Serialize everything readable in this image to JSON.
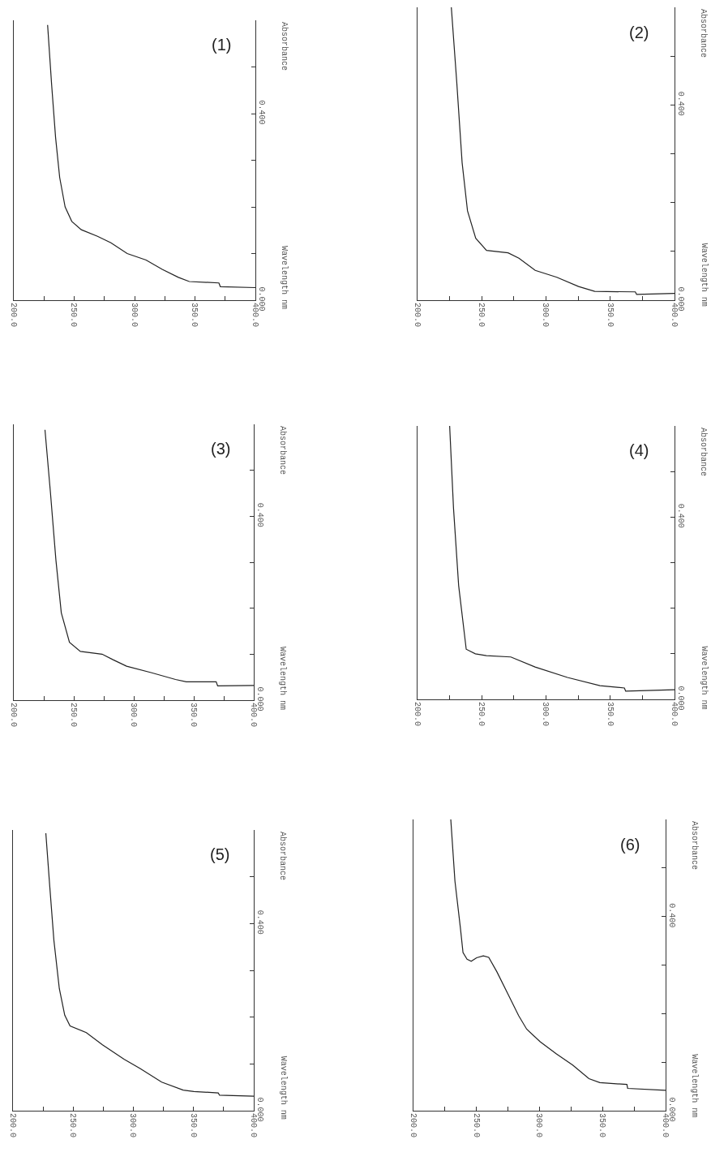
{
  "chart_data": [
    {
      "type": "line",
      "title": "(1)",
      "annotations": [
        "Wavelength nm"
      ],
      "ylabel": "Absorbance",
      "xlim": [
        200,
        400
      ],
      "ylim": [
        0,
        0.6
      ],
      "xticks": [
        {
          "value": 200,
          "label": "200.0"
        },
        {
          "value": 225,
          "label": null
        },
        {
          "value": 250,
          "label": "250.0"
        },
        {
          "value": 275,
          "label": null
        },
        {
          "value": 300,
          "label": "300.0"
        },
        {
          "value": 325,
          "label": null
        },
        {
          "value": 350,
          "label": "350.0"
        },
        {
          "value": 375,
          "label": null
        },
        {
          "value": 400,
          "label": "400.0"
        }
      ],
      "yticks": [
        {
          "value": 0,
          "label": "0.000"
        },
        {
          "value": 0.1,
          "label": null
        },
        {
          "value": 0.2,
          "label": null
        },
        {
          "value": 0.3,
          "label": null
        },
        {
          "value": 0.4,
          "label": "0.400"
        },
        {
          "value": 0.5,
          "label": null
        }
      ],
      "grid": false,
      "marker": "none",
      "line_style": "solid",
      "x": [
        228,
        231.3,
        234.6,
        238,
        242.5,
        248,
        255.9,
        269.3,
        280.4,
        293.9,
        309.5,
        322.9,
        336.3,
        345.3,
        369.8,
        371,
        400
      ],
      "series": [
        {
          "color": "#222222",
          "values": [
            0.59,
            0.463,
            0.349,
            0.263,
            0.2,
            0.169,
            0.151,
            0.137,
            0.123,
            0.1,
            0.086,
            0.066,
            0.049,
            0.04,
            0.037,
            0.029,
            0.027
          ]
        }
      ]
    },
    {
      "type": "line",
      "title": "(2)",
      "annotations": [
        "Wavelength nm"
      ],
      "ylabel": "Absorbance",
      "xlim": [
        200,
        400
      ],
      "ylim": [
        0,
        0.6
      ],
      "xticks": [
        {
          "value": 200,
          "label": "200.0"
        },
        {
          "value": 225,
          "label": null
        },
        {
          "value": 250,
          "label": "250.0"
        },
        {
          "value": 275,
          "label": null
        },
        {
          "value": 300,
          "label": "300.0"
        },
        {
          "value": 325,
          "label": null
        },
        {
          "value": 350,
          "label": "350.0"
        },
        {
          "value": 375,
          "label": null
        },
        {
          "value": 400,
          "label": "400.0"
        }
      ],
      "yticks": [
        {
          "value": 0,
          "label": "0.000"
        },
        {
          "value": 0.1,
          "label": null
        },
        {
          "value": 0.2,
          "label": null
        },
        {
          "value": 0.3,
          "label": null
        },
        {
          "value": 0.4,
          "label": "0.400"
        },
        {
          "value": 0.5,
          "label": null
        }
      ],
      "grid": false,
      "marker": "none",
      "line_style": "solid",
      "x": [
        226.3,
        230.5,
        234.7,
        238.9,
        245.3,
        253.7,
        270.5,
        278.9,
        291.6,
        308.4,
        325.3,
        337.9,
        369.5,
        370.5,
        400
      ],
      "series": [
        {
          "color": "#222222",
          "values": [
            0.6,
            0.448,
            0.282,
            0.183,
            0.127,
            0.102,
            0.097,
            0.086,
            0.061,
            0.047,
            0.028,
            0.018,
            0.017,
            0.012,
            0.014
          ]
        }
      ]
    },
    {
      "type": "line",
      "title": "(3)",
      "annotations": [
        "Wavelength nm"
      ],
      "ylabel": "Absorbance",
      "xlim": [
        200,
        400
      ],
      "ylim": [
        0,
        0.6
      ],
      "xticks": [
        {
          "value": 200,
          "label": "200.0"
        },
        {
          "value": 225,
          "label": null
        },
        {
          "value": 250,
          "label": "250.0"
        },
        {
          "value": 275,
          "label": null
        },
        {
          "value": 300,
          "label": "300.0"
        },
        {
          "value": 325,
          "label": null
        },
        {
          "value": 350,
          "label": "350.0"
        },
        {
          "value": 375,
          "label": null
        },
        {
          "value": 400,
          "label": "400.0"
        }
      ],
      "yticks": [
        {
          "value": 0,
          "label": "0.000"
        },
        {
          "value": 0.1,
          "label": null
        },
        {
          "value": 0.2,
          "label": null
        },
        {
          "value": 0.3,
          "label": null
        },
        {
          "value": 0.4,
          "label": "0.400"
        },
        {
          "value": 0.5,
          "label": null
        }
      ],
      "grid": false,
      "marker": "none",
      "line_style": "solid",
      "x": [
        226,
        230.6,
        235.1,
        239.6,
        246.4,
        255.5,
        273.6,
        282.7,
        294,
        314.4,
        334.8,
        343.8,
        368.7,
        369.9,
        400
      ],
      "series": [
        {
          "color": "#222222",
          "values": [
            0.588,
            0.45,
            0.305,
            0.19,
            0.126,
            0.106,
            0.1,
            0.088,
            0.074,
            0.06,
            0.045,
            0.04,
            0.04,
            0.031,
            0.032
          ]
        }
      ]
    },
    {
      "type": "line",
      "title": "(4)",
      "annotations": [
        "Wavelength nm"
      ],
      "ylabel": "Absorbance",
      "xlim": [
        200,
        400
      ],
      "ylim": [
        0,
        0.6
      ],
      "xticks": [
        {
          "value": 200,
          "label": "200.0"
        },
        {
          "value": 225,
          "label": null
        },
        {
          "value": 250,
          "label": "250.0"
        },
        {
          "value": 275,
          "label": null
        },
        {
          "value": 300,
          "label": "300.0"
        },
        {
          "value": 325,
          "label": null
        },
        {
          "value": 350,
          "label": "350.0"
        },
        {
          "value": 375,
          "label": null
        },
        {
          "value": 400,
          "label": "400.0"
        }
      ],
      "yticks": [
        {
          "value": 0,
          "label": "0.000"
        },
        {
          "value": 0.1,
          "label": null
        },
        {
          "value": 0.2,
          "label": null
        },
        {
          "value": 0.3,
          "label": null
        },
        {
          "value": 0.4,
          "label": "0.400"
        },
        {
          "value": 0.5,
          "label": null
        }
      ],
      "grid": false,
      "marker": "none",
      "line_style": "solid",
      "x": [
        225,
        228,
        232,
        237.9,
        245,
        253.6,
        272.6,
        291.5,
        316.7,
        342,
        361,
        362,
        400
      ],
      "series": [
        {
          "color": "#222222",
          "values": [
            0.6,
            0.42,
            0.25,
            0.11,
            0.1,
            0.096,
            0.093,
            0.071,
            0.048,
            0.03,
            0.025,
            0.018,
            0.021
          ]
        }
      ]
    },
    {
      "type": "line",
      "title": "(5)",
      "annotations": [
        "Wavelength nm"
      ],
      "ylabel": "Absorbance",
      "xlim": [
        200,
        400
      ],
      "ylim": [
        0,
        0.6
      ],
      "xticks": [
        {
          "value": 200,
          "label": "200.0"
        },
        {
          "value": 225,
          "label": null
        },
        {
          "value": 250,
          "label": "250.0"
        },
        {
          "value": 275,
          "label": null
        },
        {
          "value": 300,
          "label": "300.0"
        },
        {
          "value": 325,
          "label": null
        },
        {
          "value": 350,
          "label": "350.0"
        },
        {
          "value": 375,
          "label": null
        },
        {
          "value": 400,
          "label": "400.0"
        }
      ],
      "yticks": [
        {
          "value": 0,
          "label": "0.000"
        },
        {
          "value": 0.1,
          "label": null
        },
        {
          "value": 0.2,
          "label": null
        },
        {
          "value": 0.3,
          "label": null
        },
        {
          "value": 0.4,
          "label": "0.400"
        },
        {
          "value": 0.5,
          "label": null
        }
      ],
      "grid": false,
      "marker": "none",
      "line_style": "solid",
      "x": [
        227.3,
        230.6,
        234,
        238.5,
        243,
        247.4,
        260.9,
        274.3,
        292.2,
        305.6,
        323.5,
        341.4,
        350.3,
        370.5,
        371.6,
        400
      ],
      "series": [
        {
          "color": "#222222",
          "values": [
            0.593,
            0.478,
            0.364,
            0.261,
            0.204,
            0.181,
            0.167,
            0.141,
            0.11,
            0.09,
            0.061,
            0.044,
            0.041,
            0.038,
            0.033,
            0.031
          ]
        }
      ]
    },
    {
      "type": "line",
      "title": "(6)",
      "annotations": [
        "Wavelength nm"
      ],
      "ylabel": "Absorbance",
      "xlim": [
        200,
        400
      ],
      "ylim": [
        0,
        0.6
      ],
      "xticks": [
        {
          "value": 200,
          "label": "200.0"
        },
        {
          "value": 225,
          "label": null
        },
        {
          "value": 250,
          "label": "250.0"
        },
        {
          "value": 275,
          "label": null
        },
        {
          "value": 300,
          "label": "300.0"
        },
        {
          "value": 325,
          "label": null
        },
        {
          "value": 350,
          "label": "350.0"
        },
        {
          "value": 375,
          "label": null
        },
        {
          "value": 400,
          "label": "400.0"
        }
      ],
      "yticks": [
        {
          "value": 0,
          "label": "0.000"
        },
        {
          "value": 0.1,
          "label": null
        },
        {
          "value": 0.2,
          "label": null
        },
        {
          "value": 0.3,
          "label": null
        },
        {
          "value": 0.4,
          "label": "0.400"
        },
        {
          "value": 0.5,
          "label": null
        }
      ],
      "grid": false,
      "marker": "none",
      "line_style": "solid",
      "x": [
        229.6,
        232.9,
        237.2,
        239.3,
        242.5,
        245.8,
        250.1,
        255.4,
        259.7,
        266.2,
        274.8,
        283.4,
        289.8,
        300.5,
        313.4,
        326.3,
        339.2,
        347.8,
        369.3,
        369.9,
        400
      ],
      "series": [
        {
          "color": "#222222",
          "values": [
            0.6,
            0.473,
            0.377,
            0.326,
            0.312,
            0.308,
            0.315,
            0.319,
            0.316,
            0.286,
            0.241,
            0.196,
            0.168,
            0.142,
            0.117,
            0.094,
            0.066,
            0.058,
            0.054,
            0.046,
            0.042
          ]
        }
      ]
    }
  ]
}
